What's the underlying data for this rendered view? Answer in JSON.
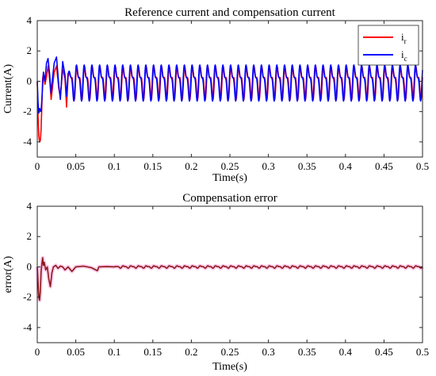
{
  "chart_data": [
    {
      "type": "line",
      "title": "Reference current and compensation current",
      "xlabel": "Time(s)",
      "ylabel": "Current(A)",
      "xlim": [
        0,
        0.5
      ],
      "ylim": [
        -5,
        4
      ],
      "x_ticks": [
        "0",
        "0.05",
        "0.1",
        "0.15",
        "0.2",
        "0.25",
        "0.3",
        "0.35",
        "0.4",
        "0.45",
        "0.5"
      ],
      "y_ticks": [
        "4",
        "2",
        "0",
        "-2",
        "-4"
      ],
      "grid": false,
      "legend": {
        "placement": "top-right",
        "entries": [
          {
            "base": "i",
            "sub": "r",
            "color": "#ff0000"
          },
          {
            "base": "i",
            "sub": "c",
            "color": "#0000ff"
          }
        ]
      },
      "series": [
        {
          "name": "ir",
          "color": "#ff0000",
          "steady": {
            "mean": 0.0,
            "amp_a": 0.85,
            "amp_b": 0.45,
            "period": 0.01
          },
          "x": [
            0,
            0.001,
            0.002,
            0.003,
            0.004,
            0.005,
            0.006,
            0.007,
            0.008,
            0.01,
            0.012,
            0.014,
            0.016,
            0.018,
            0.02,
            0.022,
            0.025,
            0.028,
            0.03,
            0.033,
            0.036,
            0.038,
            0.04
          ],
          "y": [
            0,
            -2.3,
            -3.6,
            -4.0,
            -3.9,
            -3.2,
            -1.5,
            0.2,
            0.5,
            -0.2,
            0.3,
            1.0,
            0.2,
            -1.2,
            -0.3,
            0.6,
            1.0,
            -0.5,
            -1.0,
            0.8,
            0.2,
            -1.7,
            0.3
          ]
        },
        {
          "name": "ic",
          "color": "#0000ff",
          "steady": {
            "mean": 0.0,
            "amp_a": 0.95,
            "amp_b": 0.45,
            "period": 0.01
          },
          "x": [
            0,
            0.001,
            0.002,
            0.003,
            0.004,
            0.005,
            0.006,
            0.007,
            0.008,
            0.01,
            0.012,
            0.014,
            0.016,
            0.018,
            0.02,
            0.022,
            0.025,
            0.028,
            0.03,
            0.033,
            0.036,
            0.038,
            0.04
          ],
          "y": [
            0,
            -1.4,
            -2.1,
            -1.8,
            -1.9,
            -2.0,
            -1.2,
            -0.3,
            0.6,
            0.0,
            1.2,
            1.5,
            0.5,
            -0.8,
            0.3,
            1.2,
            1.6,
            -0.3,
            -1.2,
            1.3,
            0.4,
            -1.0,
            0.5
          ]
        }
      ]
    },
    {
      "type": "line",
      "title": "Compensation error",
      "xlabel": "Time(s)",
      "ylabel": "error(A)",
      "xlim": [
        0,
        0.5
      ],
      "ylim": [
        -5,
        4
      ],
      "x_ticks": [
        "0",
        "0.05",
        "0.1",
        "0.15",
        "0.2",
        "0.25",
        "0.3",
        "0.35",
        "0.4",
        "0.45",
        "0.5"
      ],
      "y_ticks": [
        "4",
        "2",
        "0",
        "-2",
        "-4"
      ],
      "grid": false,
      "series": [
        {
          "color": "#8b1a1a",
          "band_color": "#ff9ed8",
          "x": [
            0,
            0.001,
            0.002,
            0.003,
            0.004,
            0.005,
            0.006,
            0.007,
            0.008,
            0.009,
            0.011,
            0.013,
            0.015,
            0.017,
            0.019,
            0.021,
            0.024,
            0.027,
            0.03,
            0.033,
            0.036,
            0.04,
            0.045,
            0.05,
            0.06,
            0.07,
            0.078,
            0.08,
            0.09,
            0.1
          ],
          "y": [
            0,
            -1.0,
            -2.0,
            -2.2,
            -1.6,
            -0.3,
            0.2,
            0.6,
            0.1,
            0.3,
            -0.2,
            0.0,
            -0.8,
            -1.3,
            -0.4,
            0.0,
            0.1,
            -0.1,
            0.05,
            0.0,
            -0.2,
            0.0,
            -0.3,
            0.0,
            0.05,
            -0.05,
            -0.25,
            0.0,
            0.02,
            0.0
          ],
          "steady": {
            "mean": 0.0,
            "amp_a": 0.06,
            "amp_b": 0.03,
            "period": 0.01
          }
        }
      ]
    }
  ]
}
